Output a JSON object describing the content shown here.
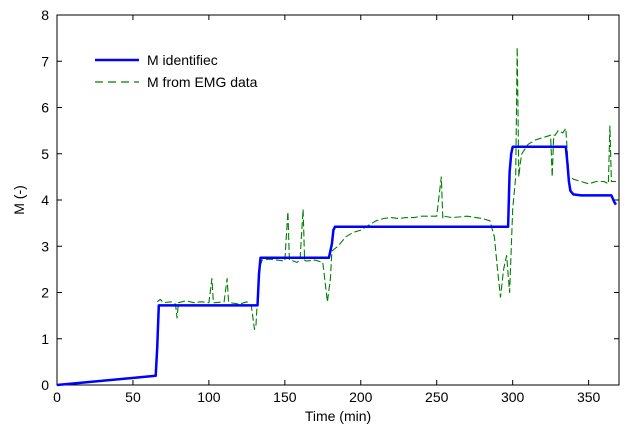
{
  "chart_data": {
    "type": "line",
    "title": "",
    "xlabel": "Time (min)",
    "ylabel": "M (-)",
    "xlim": [
      0,
      370
    ],
    "ylim": [
      0,
      8
    ],
    "xticks": [
      0,
      50,
      100,
      150,
      200,
      250,
      300,
      350
    ],
    "yticks": [
      0,
      1,
      2,
      3,
      4,
      5,
      6,
      7,
      8
    ],
    "grid": false,
    "legend_position": "top-left",
    "series": [
      {
        "name": "M identified",
        "color": "#0000ff",
        "style": "solid",
        "x": [
          0,
          65,
          66,
          67,
          132,
          133,
          134,
          179,
          181,
          182,
          183,
          297,
          298,
          299,
          300,
          335,
          336,
          337,
          338,
          340,
          345,
          365,
          367,
          368
        ],
        "y": [
          0,
          0.2,
          0.8,
          1.72,
          1.72,
          2.4,
          2.75,
          2.75,
          3.05,
          3.35,
          3.42,
          3.42,
          4.6,
          5.0,
          5.15,
          5.15,
          4.8,
          4.4,
          4.2,
          4.12,
          4.1,
          4.1,
          3.95,
          3.9
        ]
      },
      {
        "name": "M from EMG data",
        "color": "#008000",
        "style": "dashed",
        "x": [
          66,
          68,
          70,
          75,
          78,
          79,
          80,
          85,
          90,
          95,
          100,
          102,
          103,
          104,
          110,
          112,
          113,
          114,
          120,
          125,
          128,
          130,
          131,
          133,
          135,
          140,
          145,
          150,
          152,
          153,
          154,
          158,
          160,
          162,
          163,
          164,
          170,
          175,
          178,
          180,
          181,
          185,
          190,
          195,
          200,
          205,
          210,
          215,
          220,
          225,
          230,
          235,
          240,
          250,
          253,
          254,
          255,
          260,
          270,
          280,
          285,
          288,
          290,
          292,
          294,
          296,
          298,
          300,
          302,
          303,
          304,
          305,
          306,
          310,
          315,
          320,
          325,
          326,
          327,
          328,
          330,
          333,
          335,
          337,
          338,
          340,
          345,
          350,
          355,
          360,
          363,
          364,
          365,
          368
        ],
        "y": [
          1.8,
          1.85,
          1.78,
          1.8,
          1.75,
          1.45,
          1.78,
          1.82,
          1.78,
          1.8,
          1.78,
          2.3,
          1.78,
          1.78,
          1.8,
          2.3,
          1.8,
          1.78,
          1.75,
          1.8,
          1.7,
          1.2,
          1.3,
          2.5,
          2.7,
          2.72,
          2.7,
          2.68,
          3.75,
          2.7,
          2.7,
          2.65,
          2.7,
          3.8,
          2.7,
          2.68,
          2.7,
          2.65,
          1.8,
          2.3,
          2.9,
          3.0,
          3.2,
          3.3,
          3.35,
          3.45,
          3.55,
          3.6,
          3.62,
          3.6,
          3.62,
          3.62,
          3.65,
          3.65,
          4.5,
          3.6,
          3.65,
          3.62,
          3.65,
          3.6,
          3.55,
          3.2,
          2.5,
          1.9,
          2.5,
          2.8,
          2.0,
          3.8,
          4.5,
          7.3,
          4.5,
          4.8,
          5.0,
          5.2,
          5.3,
          5.35,
          5.4,
          4.5,
          5.4,
          5.4,
          5.5,
          5.45,
          5.55,
          4.5,
          4.5,
          4.45,
          4.4,
          4.35,
          4.4,
          4.4,
          4.35,
          5.6,
          4.4,
          4.4
        ]
      }
    ]
  },
  "legend": {
    "solid_label": "M identifiec",
    "dashed_label": "M from EMG data"
  }
}
